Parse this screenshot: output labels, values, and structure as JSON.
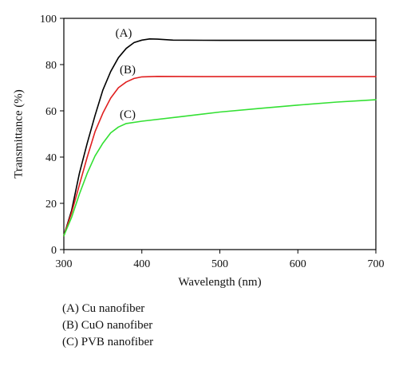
{
  "chart_data": {
    "type": "line",
    "xlabel": "Wavelength (nm)",
    "ylabel": "Transmittance (%)",
    "xlim": [
      300,
      700
    ],
    "ylim": [
      0,
      100
    ],
    "x_ticks": [
      300,
      400,
      500,
      600,
      700
    ],
    "y_ticks": [
      0,
      20,
      40,
      60,
      80,
      100
    ],
    "grid": false,
    "series": [
      {
        "name": "(A)",
        "color": "#000000",
        "points": [
          [
            300,
            6
          ],
          [
            310,
            17
          ],
          [
            320,
            33
          ],
          [
            330,
            46
          ],
          [
            340,
            58
          ],
          [
            350,
            69
          ],
          [
            360,
            77
          ],
          [
            370,
            83
          ],
          [
            380,
            87
          ],
          [
            390,
            89.5
          ],
          [
            400,
            90.6
          ],
          [
            410,
            91.1
          ],
          [
            420,
            91
          ],
          [
            440,
            90.6
          ],
          [
            500,
            90.5
          ],
          [
            600,
            90.5
          ],
          [
            700,
            90.5
          ]
        ]
      },
      {
        "name": "(B)",
        "color": "#e02020",
        "points": [
          [
            300,
            6
          ],
          [
            310,
            16
          ],
          [
            320,
            28
          ],
          [
            330,
            40
          ],
          [
            340,
            51
          ],
          [
            350,
            59
          ],
          [
            360,
            65.5
          ],
          [
            370,
            70
          ],
          [
            380,
            72.5
          ],
          [
            390,
            74
          ],
          [
            400,
            74.7
          ],
          [
            420,
            74.9
          ],
          [
            500,
            74.8
          ],
          [
            600,
            74.8
          ],
          [
            700,
            74.8
          ]
        ]
      },
      {
        "name": "(C)",
        "color": "#33e033",
        "points": [
          [
            300,
            6
          ],
          [
            310,
            14
          ],
          [
            320,
            24
          ],
          [
            330,
            33
          ],
          [
            340,
            40.5
          ],
          [
            350,
            46
          ],
          [
            360,
            50.5
          ],
          [
            370,
            53
          ],
          [
            380,
            54.5
          ],
          [
            400,
            55.5
          ],
          [
            450,
            57.5
          ],
          [
            500,
            59.5
          ],
          [
            550,
            61
          ],
          [
            600,
            62.5
          ],
          [
            650,
            63.8
          ],
          [
            700,
            64.8
          ]
        ]
      }
    ],
    "curve_labels": [
      "(A)",
      "(B)",
      "(C)"
    ],
    "legend_entries": [
      "(A) Cu nanofiber",
      "(B) CuO nanofiber",
      "(C) PVB nanofiber"
    ]
  }
}
